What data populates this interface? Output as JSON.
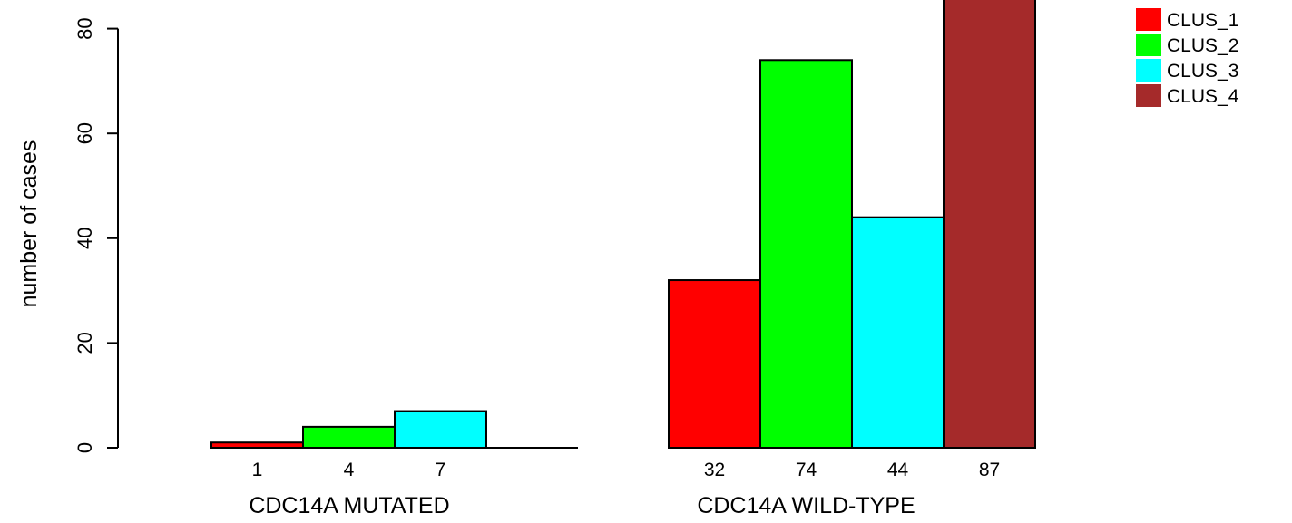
{
  "chart_data": {
    "type": "bar",
    "ylabel": "number of cases",
    "ylim": [
      0,
      88
    ],
    "yticks": [
      0,
      20,
      40,
      60,
      80
    ],
    "groups": [
      {
        "label": "CDC14A MUTATED",
        "values": [
          1,
          4,
          7,
          0
        ],
        "count_labels": [
          "1",
          "4",
          "7"
        ]
      },
      {
        "label": "CDC14A WILD-TYPE",
        "values": [
          32,
          74,
          44,
          87
        ],
        "count_labels": [
          "32",
          "74",
          "44",
          "87"
        ]
      }
    ],
    "series": [
      {
        "name": "CLUS_1",
        "color": "#ff0000"
      },
      {
        "name": "CLUS_2",
        "color": "#00ff00"
      },
      {
        "name": "CLUS_3",
        "color": "#00ffff"
      },
      {
        "name": "CLUS_4",
        "color": "#a52a2a"
      }
    ],
    "legend_position": "top-right",
    "grid": false
  }
}
